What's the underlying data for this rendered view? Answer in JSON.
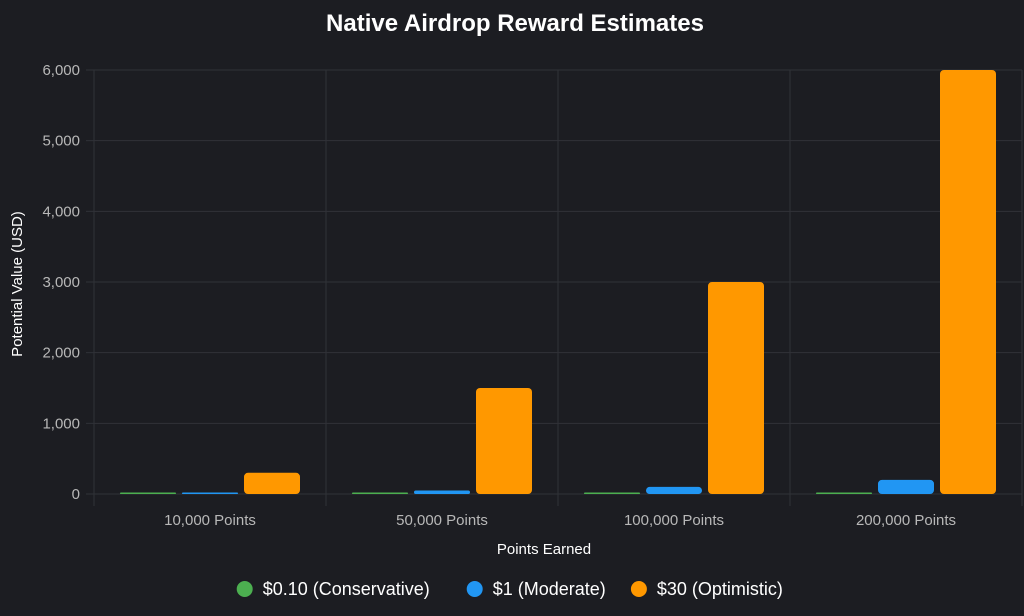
{
  "chart_data": {
    "type": "bar",
    "title": "Native Airdrop Reward Estimates",
    "xlabel": "Points Earned",
    "ylabel": "Potential Value (USD)",
    "categories": [
      "10,000 Points",
      "50,000 Points",
      "100,000 Points",
      "200,000 Points"
    ],
    "series": [
      {
        "name": "$0.10 (Conservative)",
        "color": "#4caf50",
        "values": [
          1,
          5,
          10,
          20
        ]
      },
      {
        "name": "$1 (Moderate)",
        "color": "#2196f3",
        "values": [
          10,
          50,
          100,
          200
        ]
      },
      {
        "name": "$30 (Optimistic)",
        "color": "#ff9800",
        "values": [
          300,
          1500,
          3000,
          6000
        ]
      }
    ],
    "ylim": [
      0,
      6000
    ],
    "yticks": [
      0,
      1000,
      2000,
      3000,
      4000,
      5000,
      6000
    ],
    "ytick_labels": [
      "0",
      "1,000",
      "2,000",
      "3,000",
      "4,000",
      "5,000",
      "6,000"
    ],
    "grid": true,
    "legend_position": "bottom"
  }
}
